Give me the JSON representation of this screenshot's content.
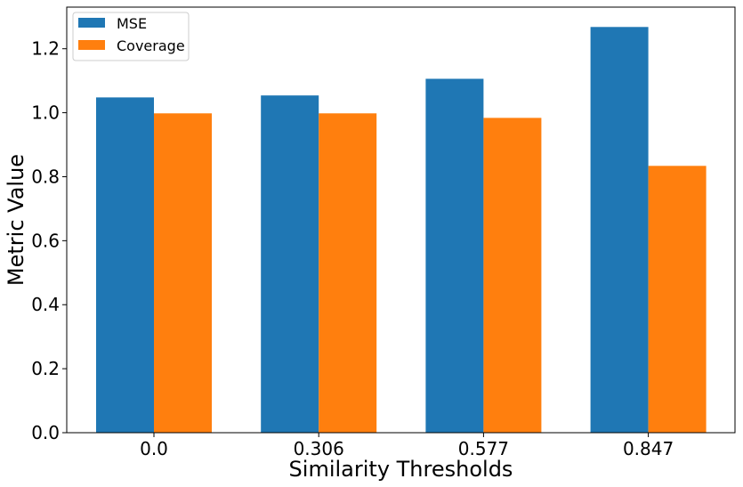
{
  "chart_data": {
    "type": "bar",
    "title": "",
    "xlabel": "Similarity Thresholds",
    "ylabel": "Metric Value",
    "categories": [
      "0.0",
      "0.306",
      "0.577",
      "0.847"
    ],
    "series": [
      {
        "name": "MSE",
        "values": [
          1.048,
          1.054,
          1.106,
          1.268
        ],
        "color": "#1f77b4"
      },
      {
        "name": "Coverage",
        "values": [
          0.998,
          0.998,
          0.984,
          0.834
        ],
        "color": "#ff7f0e"
      }
    ],
    "ylim": [
      0,
      1.33
    ],
    "yticks": [
      "0.0",
      "0.2",
      "0.4",
      "0.6",
      "0.8",
      "1.0",
      "1.2"
    ],
    "grid": false,
    "legend": "top-left"
  }
}
